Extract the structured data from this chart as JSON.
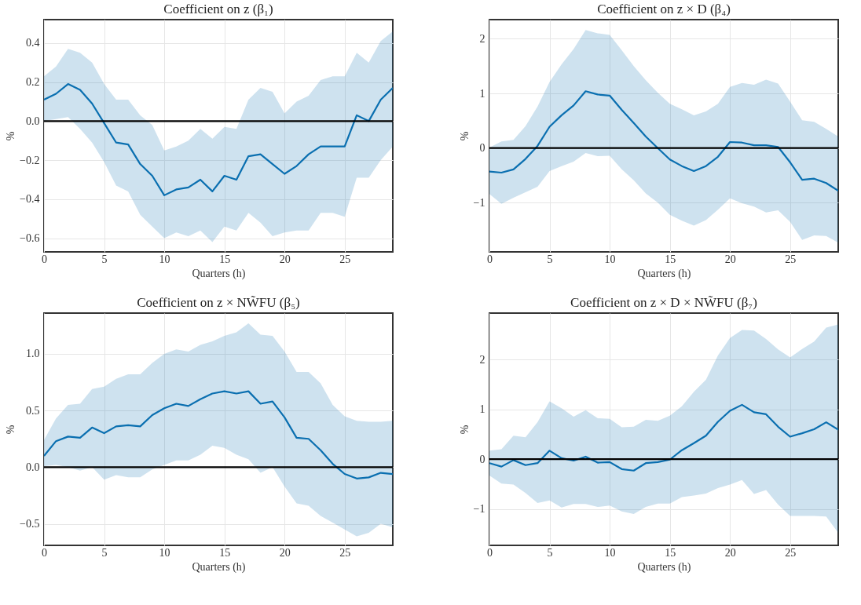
{
  "chart_data": [
    {
      "type": "line",
      "title": "Coefficient on z (β₁)",
      "xlabel": "Quarters (h)",
      "ylabel": "%",
      "grid": true,
      "xlim": [
        0,
        29
      ],
      "xticks": [
        0,
        5,
        10,
        15,
        20,
        25
      ],
      "ylim": [
        -0.67,
        0.52
      ],
      "yticks": [
        {
          "value": -0.6,
          "label": "−0.6"
        },
        {
          "value": -0.4,
          "label": "−0.4"
        },
        {
          "value": -0.2,
          "label": "−0.2"
        },
        {
          "value": 0,
          "label": "0.0"
        },
        0.2,
        0.4
      ],
      "x": [
        0,
        1,
        2,
        3,
        4,
        5,
        6,
        7,
        8,
        9,
        10,
        11,
        12,
        13,
        14,
        15,
        16,
        17,
        18,
        19,
        20,
        21,
        22,
        23,
        24,
        25,
        26,
        27,
        28,
        29
      ],
      "ref_lines": [
        {
          "axis": "y",
          "value": 0,
          "color": "#000000"
        }
      ],
      "series": [
        {
          "color": "#0a6fb0",
          "values": [
            0.11,
            0.14,
            0.19,
            0.16,
            0.09,
            -0.01,
            -0.11,
            -0.12,
            -0.22,
            -0.28,
            -0.38,
            -0.35,
            -0.34,
            -0.3,
            -0.36,
            -0.28,
            -0.3,
            -0.18,
            -0.17,
            -0.22,
            -0.27,
            -0.23,
            -0.17,
            -0.13,
            -0.13,
            -0.13,
            0.03,
            0.0,
            0.11,
            0.17
          ],
          "upper": [
            0.23,
            0.28,
            0.37,
            0.35,
            0.3,
            0.19,
            0.11,
            0.11,
            0.03,
            -0.02,
            -0.15,
            -0.13,
            -0.1,
            -0.04,
            -0.09,
            -0.03,
            -0.04,
            0.11,
            0.17,
            0.15,
            0.04,
            0.1,
            0.13,
            0.21,
            0.23,
            0.23,
            0.35,
            0.3,
            0.41,
            0.46
          ],
          "lower": [
            0.0,
            0.01,
            0.02,
            -0.04,
            -0.11,
            -0.21,
            -0.33,
            -0.36,
            -0.48,
            -0.54,
            -0.6,
            -0.57,
            -0.59,
            -0.56,
            -0.62,
            -0.54,
            -0.56,
            -0.47,
            -0.52,
            -0.59,
            -0.57,
            -0.56,
            -0.56,
            -0.47,
            -0.47,
            -0.49,
            -0.29,
            -0.29,
            -0.2,
            -0.13
          ]
        }
      ]
    },
    {
      "type": "line",
      "title": "Coefficient on z × D (β₄)",
      "xlabel": "Quarters (h)",
      "ylabel": "%",
      "grid": true,
      "xlim": [
        0,
        29
      ],
      "xticks": [
        0,
        5,
        10,
        15,
        20,
        25
      ],
      "ylim": [
        -1.9,
        2.35
      ],
      "yticks": [
        {
          "value": -1,
          "label": "−1"
        },
        0,
        1,
        2
      ],
      "x": [
        0,
        1,
        2,
        3,
        4,
        5,
        6,
        7,
        8,
        9,
        10,
        11,
        12,
        13,
        14,
        15,
        16,
        17,
        18,
        19,
        20,
        21,
        22,
        23,
        24,
        25,
        26,
        27,
        28,
        29
      ],
      "ref_lines": [
        {
          "axis": "y",
          "value": 0,
          "color": "#000000"
        }
      ],
      "series": [
        {
          "color": "#0a6fb0",
          "values": [
            -0.43,
            -0.45,
            -0.39,
            -0.2,
            0.04,
            0.39,
            0.6,
            0.78,
            1.04,
            0.98,
            0.96,
            0.7,
            0.46,
            0.21,
            0.0,
            -0.21,
            -0.33,
            -0.42,
            -0.33,
            -0.16,
            0.11,
            0.1,
            0.05,
            0.05,
            0.02,
            -0.26,
            -0.58,
            -0.56,
            -0.64,
            -0.78
          ],
          "upper": [
            0.01,
            0.12,
            0.15,
            0.4,
            0.76,
            1.21,
            1.53,
            1.81,
            2.16,
            2.1,
            2.07,
            1.79,
            1.5,
            1.24,
            1.01,
            0.81,
            0.71,
            0.6,
            0.67,
            0.81,
            1.12,
            1.19,
            1.16,
            1.25,
            1.18,
            0.85,
            0.51,
            0.48,
            0.35,
            0.21
          ],
          "lower": [
            -0.84,
            -1.02,
            -0.91,
            -0.81,
            -0.71,
            -0.42,
            -0.33,
            -0.25,
            -0.09,
            -0.15,
            -0.14,
            -0.39,
            -0.59,
            -0.83,
            -1.0,
            -1.22,
            -1.33,
            -1.42,
            -1.32,
            -1.13,
            -0.92,
            -1.01,
            -1.07,
            -1.18,
            -1.14,
            -1.35,
            -1.68,
            -1.6,
            -1.61,
            -1.73
          ]
        }
      ]
    },
    {
      "type": "line",
      "title": "Coefficient on z × NW̃FU (β₅)",
      "xlabel": "Quarters (h)",
      "ylabel": "%",
      "grid": true,
      "xlim": [
        0,
        29
      ],
      "xticks": [
        0,
        5,
        10,
        15,
        20,
        25
      ],
      "ylim": [
        -0.69,
        1.36
      ],
      "yticks": [
        {
          "value": -0.5,
          "label": "−0.5"
        },
        {
          "value": 0,
          "label": "0.0"
        },
        0.5,
        {
          "value": 1,
          "label": "1.0"
        }
      ],
      "x": [
        0,
        1,
        2,
        3,
        4,
        5,
        6,
        7,
        8,
        9,
        10,
        11,
        12,
        13,
        14,
        15,
        16,
        17,
        18,
        19,
        20,
        21,
        22,
        23,
        24,
        25,
        26,
        27,
        28,
        29
      ],
      "ref_lines": [
        {
          "axis": "y",
          "value": 0,
          "color": "#000000"
        }
      ],
      "series": [
        {
          "color": "#0a6fb0",
          "values": [
            0.1,
            0.23,
            0.27,
            0.26,
            0.35,
            0.3,
            0.36,
            0.37,
            0.36,
            0.46,
            0.52,
            0.56,
            0.54,
            0.6,
            0.65,
            0.67,
            0.65,
            0.67,
            0.56,
            0.58,
            0.44,
            0.26,
            0.25,
            0.15,
            0.03,
            -0.06,
            -0.1,
            -0.09,
            -0.05,
            -0.06
          ],
          "upper": [
            0.24,
            0.43,
            0.55,
            0.56,
            0.69,
            0.71,
            0.78,
            0.82,
            0.82,
            0.92,
            1.0,
            1.04,
            1.02,
            1.08,
            1.11,
            1.16,
            1.19,
            1.27,
            1.17,
            1.16,
            1.02,
            0.84,
            0.84,
            0.74,
            0.55,
            0.45,
            0.41,
            0.4,
            0.4,
            0.41
          ],
          "lower": [
            0.01,
            0.02,
            0.0,
            -0.03,
            0.0,
            -0.11,
            -0.07,
            -0.09,
            -0.09,
            -0.02,
            0.02,
            0.06,
            0.06,
            0.11,
            0.19,
            0.17,
            0.11,
            0.07,
            -0.05,
            0.0,
            -0.17,
            -0.32,
            -0.34,
            -0.43,
            -0.49,
            -0.55,
            -0.61,
            -0.58,
            -0.5,
            -0.53
          ]
        }
      ]
    },
    {
      "type": "line",
      "title": "Coefficient on z × D × NW̃FU (β₇)",
      "xlabel": "Quarters (h)",
      "ylabel": "%",
      "grid": true,
      "xlim": [
        0,
        29
      ],
      "xticks": [
        0,
        5,
        10,
        15,
        20,
        25
      ],
      "ylim": [
        -1.73,
        2.93
      ],
      "yticks": [
        {
          "value": -1,
          "label": "−1"
        },
        0,
        1,
        2
      ],
      "x": [
        0,
        1,
        2,
        3,
        4,
        5,
        6,
        7,
        8,
        9,
        10,
        11,
        12,
        13,
        14,
        15,
        16,
        17,
        18,
        19,
        20,
        21,
        22,
        23,
        24,
        25,
        26,
        27,
        28,
        29
      ],
      "ref_lines": [
        {
          "axis": "y",
          "value": 0,
          "color": "#000000"
        }
      ],
      "series": [
        {
          "color": "#0a6fb0",
          "values": [
            -0.08,
            -0.15,
            -0.02,
            -0.12,
            -0.08,
            0.17,
            0.02,
            -0.03,
            0.05,
            -0.07,
            -0.06,
            -0.2,
            -0.23,
            -0.08,
            -0.06,
            -0.01,
            0.18,
            0.32,
            0.47,
            0.75,
            0.97,
            1.09,
            0.94,
            0.9,
            0.65,
            0.45,
            0.52,
            0.6,
            0.74,
            0.59
          ],
          "upper": [
            0.17,
            0.2,
            0.47,
            0.44,
            0.74,
            1.16,
            1.02,
            0.85,
            0.98,
            0.82,
            0.81,
            0.64,
            0.65,
            0.79,
            0.77,
            0.87,
            1.06,
            1.35,
            1.59,
            2.08,
            2.43,
            2.59,
            2.58,
            2.41,
            2.2,
            2.04,
            2.21,
            2.36,
            2.64,
            2.7
          ],
          "lower": [
            -0.33,
            -0.49,
            -0.51,
            -0.68,
            -0.88,
            -0.83,
            -0.97,
            -0.9,
            -0.9,
            -0.96,
            -0.93,
            -1.05,
            -1.1,
            -0.96,
            -0.89,
            -0.89,
            -0.76,
            -0.73,
            -0.69,
            -0.58,
            -0.51,
            -0.42,
            -0.7,
            -0.62,
            -0.91,
            -1.14,
            -1.14,
            -1.14,
            -1.15,
            -1.48
          ]
        }
      ]
    }
  ]
}
